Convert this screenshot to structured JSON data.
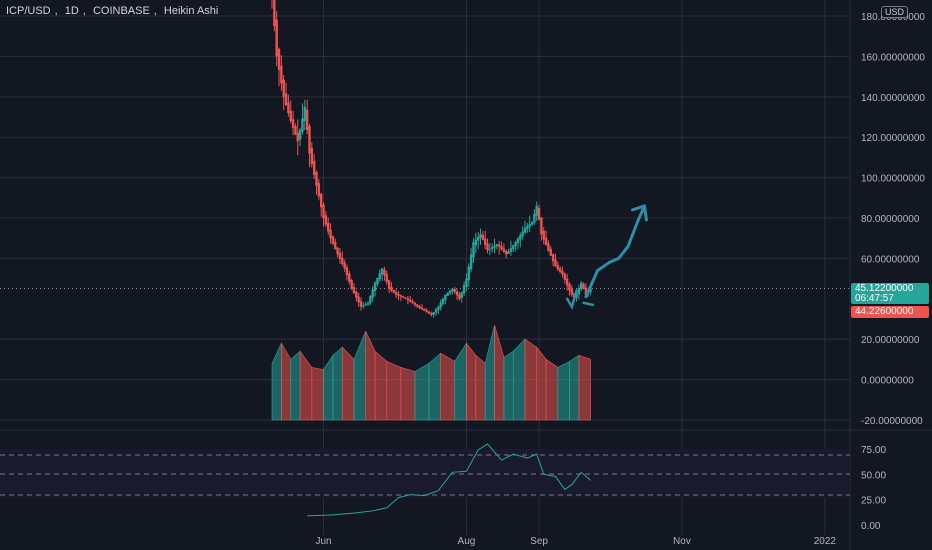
{
  "header": {
    "symbol": "ICP/USD",
    "interval": "1D",
    "exchange": "COINBASE",
    "chart_style": "Heikin Ashi",
    "currency_badge": "USD"
  },
  "price_tags": {
    "current_price": "45.12200000",
    "countdown": "06:47:57",
    "low_price": "44.22600000"
  },
  "colors": {
    "background": "#131722",
    "up": "#26a69a",
    "down": "#ef5350",
    "grid": "#2a2e39",
    "annotation": "#2c8fa5",
    "rsi_line": "#26a69a",
    "rsi_band": "#1a1a2e"
  },
  "chart_data": [
    {
      "type": "candlestick",
      "title": "ICP/USD, 1D, COINBASE, Heikin Ashi",
      "x_ticks": [
        "Jun",
        "Aug",
        "Sep",
        "Nov",
        "2022"
      ],
      "x_tick_dates": [
        "2021-06-01",
        "2021-08-01",
        "2021-09-01",
        "2021-11-01",
        "2022-01-01"
      ],
      "x_range": [
        "2021-05-10",
        "2022-01-16"
      ],
      "y_ticks": [
        "180.00000000",
        "160.00000000",
        "140.00000000",
        "120.00000000",
        "100.00000000",
        "80.00000000",
        "60.00000000",
        "20.00000000",
        "0.00000000",
        "-20.00000000"
      ],
      "y_range": [
        -22,
        182
      ],
      "grid": true,
      "current_price_line": 45.122,
      "series_dates": [
        "2021-05-10",
        "2021-09-23"
      ],
      "close_path": [
        [
          "2021-05-10",
          190
        ],
        [
          "2021-05-12",
          160
        ],
        [
          "2021-05-15",
          140
        ],
        [
          "2021-05-18",
          128
        ],
        [
          "2021-05-21",
          118
        ],
        [
          "2021-05-24",
          135
        ],
        [
          "2021-05-26",
          112
        ],
        [
          "2021-05-29",
          96
        ],
        [
          "2021-06-01",
          80
        ],
        [
          "2021-06-04",
          70
        ],
        [
          "2021-06-07",
          62
        ],
        [
          "2021-06-10",
          55
        ],
        [
          "2021-06-13",
          45
        ],
        [
          "2021-06-17",
          36
        ],
        [
          "2021-06-20",
          38
        ],
        [
          "2021-06-23",
          48
        ],
        [
          "2021-06-26",
          55
        ],
        [
          "2021-06-29",
          45
        ],
        [
          "2021-07-02",
          42
        ],
        [
          "2021-07-06",
          40
        ],
        [
          "2021-07-10",
          37
        ],
        [
          "2021-07-14",
          34
        ],
        [
          "2021-07-17",
          32
        ],
        [
          "2021-07-20",
          36
        ],
        [
          "2021-07-23",
          42
        ],
        [
          "2021-07-26",
          45
        ],
        [
          "2021-07-29",
          40
        ],
        [
          "2021-08-01",
          50
        ],
        [
          "2021-08-04",
          68
        ],
        [
          "2021-08-07",
          72
        ],
        [
          "2021-08-10",
          64
        ],
        [
          "2021-08-14",
          67
        ],
        [
          "2021-08-18",
          62
        ],
        [
          "2021-08-22",
          68
        ],
        [
          "2021-08-26",
          75
        ],
        [
          "2021-08-29",
          78
        ],
        [
          "2021-08-31",
          86
        ],
        [
          "2021-09-02",
          72
        ],
        [
          "2021-09-05",
          64
        ],
        [
          "2021-09-08",
          56
        ],
        [
          "2021-09-11",
          52
        ],
        [
          "2021-09-14",
          44
        ],
        [
          "2021-09-16",
          40
        ],
        [
          "2021-09-19",
          48
        ],
        [
          "2021-09-21",
          42
        ],
        [
          "2021-09-23",
          45
        ]
      ],
      "annotation_arrow": [
        [
          "2021-09-21",
          41
        ],
        [
          "2021-09-26",
          54
        ],
        [
          "2021-10-01",
          58
        ],
        [
          "2021-10-05",
          60
        ],
        [
          "2021-10-09",
          66
        ],
        [
          "2021-10-13",
          78
        ],
        [
          "2021-10-16",
          86
        ]
      ]
    },
    {
      "type": "area",
      "y_range": [
        -20,
        20
      ],
      "overlay_on": "main pane",
      "momentum": [
        [
          "2021-05-10",
          8
        ],
        [
          "2021-05-14",
          18
        ],
        [
          "2021-05-18",
          10
        ],
        [
          "2021-05-22",
          14
        ],
        [
          "2021-05-27",
          6
        ],
        [
          "2021-06-01",
          5
        ],
        [
          "2021-06-05",
          12
        ],
        [
          "2021-06-09",
          16
        ],
        [
          "2021-06-14",
          10
        ],
        [
          "2021-06-19",
          24
        ],
        [
          "2021-06-23",
          14
        ],
        [
          "2021-06-28",
          9
        ],
        [
          "2021-07-04",
          6
        ],
        [
          "2021-07-10",
          4
        ],
        [
          "2021-07-16",
          8
        ],
        [
          "2021-07-21",
          13
        ],
        [
          "2021-07-27",
          9
        ],
        [
          "2021-08-01",
          18
        ],
        [
          "2021-08-05",
          12
        ],
        [
          "2021-08-09",
          8
        ],
        [
          "2021-08-13",
          27
        ],
        [
          "2021-08-17",
          11
        ],
        [
          "2021-08-21",
          14
        ],
        [
          "2021-08-26",
          20
        ],
        [
          "2021-08-31",
          16
        ],
        [
          "2021-09-04",
          10
        ],
        [
          "2021-09-09",
          6
        ],
        [
          "2021-09-14",
          9
        ],
        [
          "2021-09-18",
          12
        ],
        [
          "2021-09-23",
          10
        ]
      ]
    },
    {
      "type": "line",
      "y_ticks": [
        "75.00",
        "50.00",
        "25.00",
        "0.00"
      ],
      "y_range": [
        0,
        90
      ],
      "bands": [
        30,
        50,
        70
      ],
      "rsi": [
        [
          "2021-05-25",
          9
        ],
        [
          "2021-06-05",
          10
        ],
        [
          "2021-06-15",
          12
        ],
        [
          "2021-06-22",
          14
        ],
        [
          "2021-06-28",
          17
        ],
        [
          "2021-07-03",
          27
        ],
        [
          "2021-07-08",
          30
        ],
        [
          "2021-07-14",
          29
        ],
        [
          "2021-07-20",
          34
        ],
        [
          "2021-07-26",
          52
        ],
        [
          "2021-08-01",
          53
        ],
        [
          "2021-08-06",
          74
        ],
        [
          "2021-08-10",
          80
        ],
        [
          "2021-08-16",
          64
        ],
        [
          "2021-08-21",
          70
        ],
        [
          "2021-08-27",
          66
        ],
        [
          "2021-08-31",
          70
        ],
        [
          "2021-09-03",
          50
        ],
        [
          "2021-09-08",
          48
        ],
        [
          "2021-09-12",
          35
        ],
        [
          "2021-09-15",
          40
        ],
        [
          "2021-09-19",
          52
        ],
        [
          "2021-09-23",
          44
        ]
      ]
    }
  ]
}
